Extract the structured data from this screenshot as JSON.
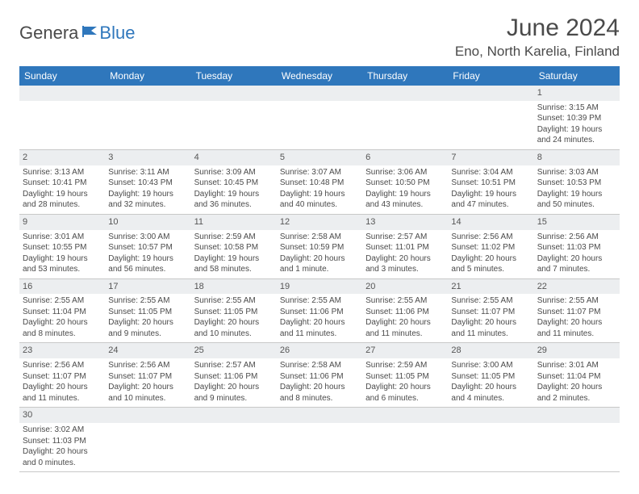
{
  "logo": {
    "text_a": "Genera",
    "text_b": "Blue"
  },
  "title": "June 2024",
  "location": "Eno, North Karelia, Finland",
  "colors": {
    "header_bg": "#2f77bc",
    "header_text": "#ffffff",
    "daynum_bg": "#eceef0",
    "text": "#4a4a4a",
    "border": "#c8c8c8"
  },
  "weekdays": [
    "Sunday",
    "Monday",
    "Tuesday",
    "Wednesday",
    "Thursday",
    "Friday",
    "Saturday"
  ],
  "weeks": [
    [
      null,
      null,
      null,
      null,
      null,
      null,
      {
        "n": "1",
        "sr": "Sunrise: 3:15 AM",
        "ss": "Sunset: 10:39 PM",
        "d1": "Daylight: 19 hours",
        "d2": "and 24 minutes."
      }
    ],
    [
      {
        "n": "2",
        "sr": "Sunrise: 3:13 AM",
        "ss": "Sunset: 10:41 PM",
        "d1": "Daylight: 19 hours",
        "d2": "and 28 minutes."
      },
      {
        "n": "3",
        "sr": "Sunrise: 3:11 AM",
        "ss": "Sunset: 10:43 PM",
        "d1": "Daylight: 19 hours",
        "d2": "and 32 minutes."
      },
      {
        "n": "4",
        "sr": "Sunrise: 3:09 AM",
        "ss": "Sunset: 10:45 PM",
        "d1": "Daylight: 19 hours",
        "d2": "and 36 minutes."
      },
      {
        "n": "5",
        "sr": "Sunrise: 3:07 AM",
        "ss": "Sunset: 10:48 PM",
        "d1": "Daylight: 19 hours",
        "d2": "and 40 minutes."
      },
      {
        "n": "6",
        "sr": "Sunrise: 3:06 AM",
        "ss": "Sunset: 10:50 PM",
        "d1": "Daylight: 19 hours",
        "d2": "and 43 minutes."
      },
      {
        "n": "7",
        "sr": "Sunrise: 3:04 AM",
        "ss": "Sunset: 10:51 PM",
        "d1": "Daylight: 19 hours",
        "d2": "and 47 minutes."
      },
      {
        "n": "8",
        "sr": "Sunrise: 3:03 AM",
        "ss": "Sunset: 10:53 PM",
        "d1": "Daylight: 19 hours",
        "d2": "and 50 minutes."
      }
    ],
    [
      {
        "n": "9",
        "sr": "Sunrise: 3:01 AM",
        "ss": "Sunset: 10:55 PM",
        "d1": "Daylight: 19 hours",
        "d2": "and 53 minutes."
      },
      {
        "n": "10",
        "sr": "Sunrise: 3:00 AM",
        "ss": "Sunset: 10:57 PM",
        "d1": "Daylight: 19 hours",
        "d2": "and 56 minutes."
      },
      {
        "n": "11",
        "sr": "Sunrise: 2:59 AM",
        "ss": "Sunset: 10:58 PM",
        "d1": "Daylight: 19 hours",
        "d2": "and 58 minutes."
      },
      {
        "n": "12",
        "sr": "Sunrise: 2:58 AM",
        "ss": "Sunset: 10:59 PM",
        "d1": "Daylight: 20 hours",
        "d2": "and 1 minute."
      },
      {
        "n": "13",
        "sr": "Sunrise: 2:57 AM",
        "ss": "Sunset: 11:01 PM",
        "d1": "Daylight: 20 hours",
        "d2": "and 3 minutes."
      },
      {
        "n": "14",
        "sr": "Sunrise: 2:56 AM",
        "ss": "Sunset: 11:02 PM",
        "d1": "Daylight: 20 hours",
        "d2": "and 5 minutes."
      },
      {
        "n": "15",
        "sr": "Sunrise: 2:56 AM",
        "ss": "Sunset: 11:03 PM",
        "d1": "Daylight: 20 hours",
        "d2": "and 7 minutes."
      }
    ],
    [
      {
        "n": "16",
        "sr": "Sunrise: 2:55 AM",
        "ss": "Sunset: 11:04 PM",
        "d1": "Daylight: 20 hours",
        "d2": "and 8 minutes."
      },
      {
        "n": "17",
        "sr": "Sunrise: 2:55 AM",
        "ss": "Sunset: 11:05 PM",
        "d1": "Daylight: 20 hours",
        "d2": "and 9 minutes."
      },
      {
        "n": "18",
        "sr": "Sunrise: 2:55 AM",
        "ss": "Sunset: 11:05 PM",
        "d1": "Daylight: 20 hours",
        "d2": "and 10 minutes."
      },
      {
        "n": "19",
        "sr": "Sunrise: 2:55 AM",
        "ss": "Sunset: 11:06 PM",
        "d1": "Daylight: 20 hours",
        "d2": "and 11 minutes."
      },
      {
        "n": "20",
        "sr": "Sunrise: 2:55 AM",
        "ss": "Sunset: 11:06 PM",
        "d1": "Daylight: 20 hours",
        "d2": "and 11 minutes."
      },
      {
        "n": "21",
        "sr": "Sunrise: 2:55 AM",
        "ss": "Sunset: 11:07 PM",
        "d1": "Daylight: 20 hours",
        "d2": "and 11 minutes."
      },
      {
        "n": "22",
        "sr": "Sunrise: 2:55 AM",
        "ss": "Sunset: 11:07 PM",
        "d1": "Daylight: 20 hours",
        "d2": "and 11 minutes."
      }
    ],
    [
      {
        "n": "23",
        "sr": "Sunrise: 2:56 AM",
        "ss": "Sunset: 11:07 PM",
        "d1": "Daylight: 20 hours",
        "d2": "and 11 minutes."
      },
      {
        "n": "24",
        "sr": "Sunrise: 2:56 AM",
        "ss": "Sunset: 11:07 PM",
        "d1": "Daylight: 20 hours",
        "d2": "and 10 minutes."
      },
      {
        "n": "25",
        "sr": "Sunrise: 2:57 AM",
        "ss": "Sunset: 11:06 PM",
        "d1": "Daylight: 20 hours",
        "d2": "and 9 minutes."
      },
      {
        "n": "26",
        "sr": "Sunrise: 2:58 AM",
        "ss": "Sunset: 11:06 PM",
        "d1": "Daylight: 20 hours",
        "d2": "and 8 minutes."
      },
      {
        "n": "27",
        "sr": "Sunrise: 2:59 AM",
        "ss": "Sunset: 11:05 PM",
        "d1": "Daylight: 20 hours",
        "d2": "and 6 minutes."
      },
      {
        "n": "28",
        "sr": "Sunrise: 3:00 AM",
        "ss": "Sunset: 11:05 PM",
        "d1": "Daylight: 20 hours",
        "d2": "and 4 minutes."
      },
      {
        "n": "29",
        "sr": "Sunrise: 3:01 AM",
        "ss": "Sunset: 11:04 PM",
        "d1": "Daylight: 20 hours",
        "d2": "and 2 minutes."
      }
    ],
    [
      {
        "n": "30",
        "sr": "Sunrise: 3:02 AM",
        "ss": "Sunset: 11:03 PM",
        "d1": "Daylight: 20 hours",
        "d2": "and 0 minutes."
      },
      null,
      null,
      null,
      null,
      null,
      null
    ]
  ]
}
